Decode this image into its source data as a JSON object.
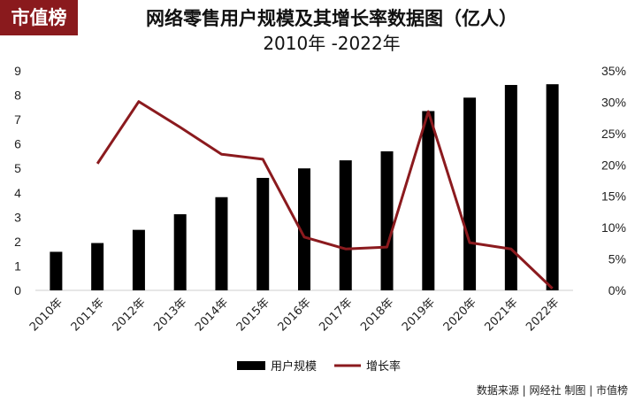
{
  "brand": "市值榜",
  "title_line1": "网络零售用户规模及其增长率数据图（亿人）",
  "title_line2": "2010年 -2022年",
  "source": "数据来源 | 网经社 制图 | 市值榜",
  "chart_data": {
    "type": "bar",
    "categories": [
      "2010年",
      "2011年",
      "2012年",
      "2013年",
      "2014年",
      "2015年",
      "2016年",
      "2017年",
      "2018年",
      "2019年",
      "2020年",
      "2021年",
      "2022年"
    ],
    "series": [
      {
        "name": "用户规模",
        "type": "bar",
        "axis": "left",
        "color": "#000000",
        "values": [
          1.58,
          1.94,
          2.48,
          3.12,
          3.82,
          4.61,
          5.0,
          5.33,
          5.7,
          7.35,
          7.9,
          8.42,
          8.45
        ]
      },
      {
        "name": "增长率",
        "type": "line",
        "axis": "right",
        "color": "#8b1a1e",
        "values": [
          null,
          20.2,
          30.1,
          26.0,
          21.7,
          20.9,
          8.5,
          6.6,
          6.9,
          28.5,
          7.6,
          6.6,
          0.3
        ]
      }
    ],
    "y_left": {
      "ticks": [
        "0",
        "1",
        "2",
        "3",
        "4",
        "5",
        "6",
        "7",
        "8",
        "9"
      ],
      "ylim": [
        0,
        9
      ]
    },
    "y_right": {
      "ticks": [
        "0%",
        "5%",
        "10%",
        "15%",
        "20%",
        "25%",
        "30%",
        "35%"
      ],
      "ylim": [
        0,
        35
      ]
    },
    "legend": "bottom-center",
    "grid": false
  }
}
